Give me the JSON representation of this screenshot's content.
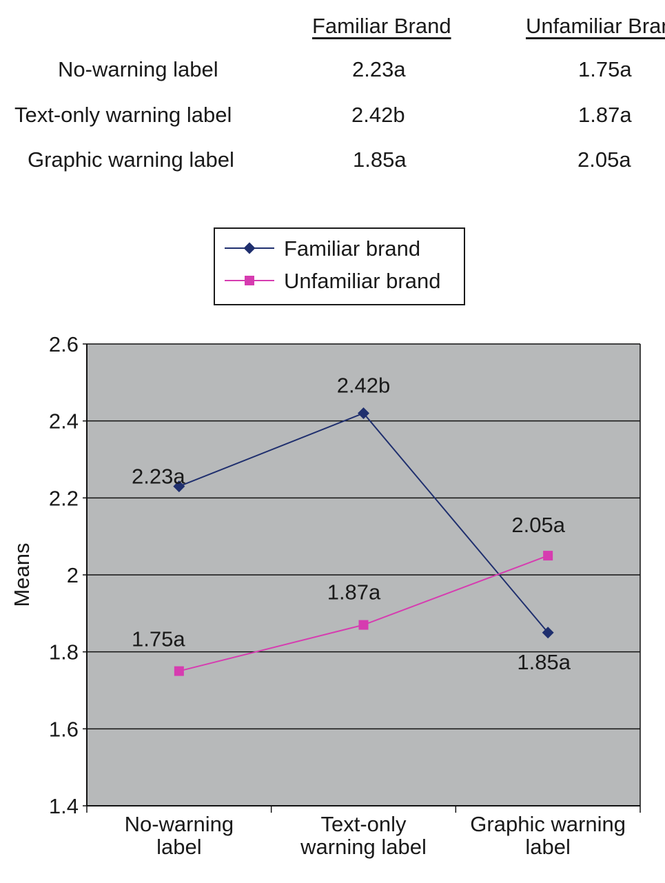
{
  "table": {
    "headers": [
      "Familiar Brand",
      "Unfamiliar Brand"
    ],
    "rows": [
      {
        "label": "No-warning label",
        "values": [
          "2.23a",
          "1.75a"
        ]
      },
      {
        "label": "Text-only warning label",
        "values": [
          "2.42b",
          "1.87a"
        ]
      },
      {
        "label": "Graphic warning label",
        "values": [
          "1.85a",
          "2.05a"
        ]
      }
    ]
  },
  "chart_data": {
    "type": "line",
    "categories": [
      [
        "No-warning",
        "label"
      ],
      [
        "Text-only",
        "warning label"
      ],
      [
        "Graphic warning",
        "label"
      ]
    ],
    "series": [
      {
        "name": "Familiar brand",
        "values": [
          2.23,
          2.42,
          1.85
        ],
        "labels": [
          "2.23a",
          "2.42b",
          "1.85a"
        ],
        "color": "#1f2f6e",
        "marker": "diamond"
      },
      {
        "name": "Unfamiliar brand",
        "values": [
          1.75,
          1.87,
          2.05
        ],
        "labels": [
          "1.75a",
          "1.87a",
          "2.05a"
        ],
        "color": "#d63cb0",
        "marker": "square"
      }
    ],
    "title": "",
    "xlabel": "",
    "ylabel": "Means",
    "ylim": [
      1.4,
      2.6
    ],
    "yticks": [
      1.4,
      1.6,
      1.8,
      2,
      2.2,
      2.4,
      2.6
    ],
    "ytick_labels": [
      "1.4",
      "1.6",
      "1.8",
      "2",
      "2.2",
      "2.4",
      "2.6"
    ],
    "grid": true,
    "legend": "top-center",
    "plot_background": "#b7b9ba"
  }
}
